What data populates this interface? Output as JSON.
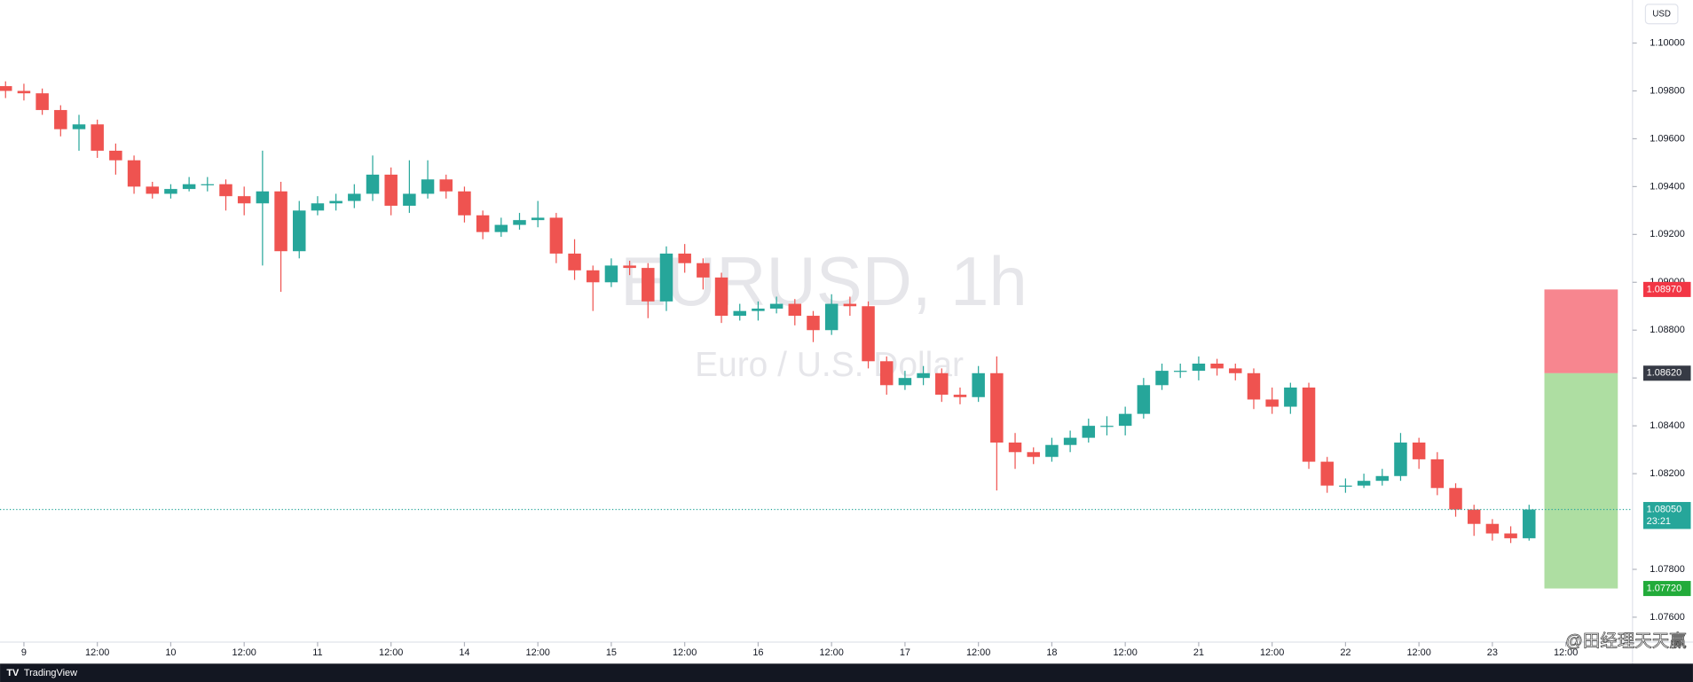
{
  "chart_data": {
    "type": "candlestick",
    "title": "EURUSD, 1h",
    "subtitle": "Euro / U.S. Dollar",
    "currency": "USD",
    "brand": "TradingView",
    "overlay_text": "@田经理天天赢",
    "up_color": "#26a69a",
    "down_color": "#ef5350",
    "grid": false,
    "xlim": [
      -3.9,
      262.9
    ],
    "ylim": [
      1.07496,
      1.1018
    ],
    "xticks": [
      {
        "value": 0,
        "label": "9"
      },
      {
        "value": 12,
        "label": "12:00"
      },
      {
        "value": 24,
        "label": "10"
      },
      {
        "value": 36,
        "label": "12:00"
      },
      {
        "value": 48,
        "label": "11"
      },
      {
        "value": 60,
        "label": "12:00"
      },
      {
        "value": 72,
        "label": "14"
      },
      {
        "value": 84,
        "label": "12:00"
      },
      {
        "value": 96,
        "label": "15"
      },
      {
        "value": 108,
        "label": "12:00"
      },
      {
        "value": 120,
        "label": "16"
      },
      {
        "value": 132,
        "label": "12:00"
      },
      {
        "value": 144,
        "label": "17"
      },
      {
        "value": 156,
        "label": "12:00"
      },
      {
        "value": 168,
        "label": "18"
      },
      {
        "value": 180,
        "label": "12:00"
      },
      {
        "value": 192,
        "label": "21"
      },
      {
        "value": 204,
        "label": "12:00"
      },
      {
        "value": 216,
        "label": "22"
      },
      {
        "value": 228,
        "label": "12:00"
      },
      {
        "value": 240,
        "label": "23"
      },
      {
        "value": 252,
        "label": "12:00"
      }
    ],
    "yticks": [
      {
        "value": 1.1,
        "label": "1.10000"
      },
      {
        "value": 1.098,
        "label": "1.09800"
      },
      {
        "value": 1.096,
        "label": "1.09600"
      },
      {
        "value": 1.094,
        "label": "1.09400"
      },
      {
        "value": 1.092,
        "label": "1.09200"
      },
      {
        "value": 1.09,
        "label": "1.09000"
      },
      {
        "value": 1.088,
        "label": "1.08800"
      },
      {
        "value": 1.086,
        "label": "1.08600"
      },
      {
        "value": 1.084,
        "label": "1.08400"
      },
      {
        "value": 1.082,
        "label": "1.08200"
      },
      {
        "value": 1.078,
        "label": "1.07800"
      },
      {
        "value": 1.076,
        "label": "1.07600"
      }
    ],
    "x": [
      -3,
      0,
      3,
      6,
      9,
      12,
      15,
      18,
      21,
      24,
      27,
      30,
      33,
      36,
      39,
      42,
      45,
      48,
      51,
      54,
      57,
      60,
      63,
      66,
      69,
      72,
      75,
      78,
      81,
      84,
      87,
      90,
      93,
      96,
      99,
      102,
      105,
      108,
      111,
      114,
      117,
      120,
      123,
      126,
      129,
      132,
      135,
      138,
      141,
      144,
      147,
      150,
      153,
      156,
      159,
      162,
      165,
      168,
      171,
      174,
      177,
      180,
      183,
      186,
      189,
      192,
      195,
      198,
      201,
      204,
      207,
      210,
      213,
      216,
      219,
      222,
      225,
      228,
      231,
      234,
      237,
      240,
      243,
      246
    ],
    "open": [
      1.0982,
      1.098,
      1.0979,
      1.0972,
      1.0964,
      1.0966,
      1.0955,
      1.0951,
      1.094,
      1.0937,
      1.0939,
      1.0941,
      1.0941,
      1.0936,
      1.0933,
      1.0938,
      1.0913,
      1.093,
      1.0933,
      1.0934,
      1.0937,
      1.0945,
      1.0932,
      1.0937,
      1.0943,
      1.0938,
      1.0928,
      1.0921,
      1.0924,
      1.0926,
      1.0927,
      1.0912,
      1.0905,
      1.09,
      1.0907,
      1.0906,
      1.0892,
      1.0912,
      1.0908,
      1.0902,
      1.0886,
      1.0888,
      1.0889,
      1.0891,
      1.0886,
      1.088,
      1.0891,
      1.089,
      1.0867,
      1.0857,
      1.086,
      1.0862,
      1.0853,
      1.0852,
      1.0862,
      1.0833,
      1.0829,
      1.0827,
      1.0832,
      1.0835,
      1.084,
      1.084,
      1.0845,
      1.0857,
      1.0863,
      1.0863,
      1.0866,
      1.0864,
      1.0862,
      1.0851,
      1.0848,
      1.0856,
      1.0825,
      1.0815,
      1.0815,
      1.0817,
      1.0819,
      1.0833,
      1.0826,
      1.0814,
      1.0805,
      1.0799,
      1.0795,
      1.0793
    ],
    "high": [
      1.0984,
      1.0983,
      1.0981,
      1.0974,
      1.097,
      1.0968,
      1.0958,
      1.0953,
      1.0942,
      1.0941,
      1.0944,
      1.0944,
      1.0943,
      1.094,
      1.0955,
      1.0942,
      1.0934,
      1.0936,
      1.0937,
      1.0941,
      1.0953,
      1.0948,
      1.0951,
      1.0951,
      1.0945,
      1.094,
      1.093,
      1.0927,
      1.0929,
      1.0934,
      1.0929,
      1.0918,
      1.0907,
      1.091,
      1.0909,
      1.0908,
      1.0915,
      1.0916,
      1.091,
      1.0904,
      1.0891,
      1.0892,
      1.0894,
      1.0893,
      1.0888,
      1.0895,
      1.0894,
      1.0892,
      1.0869,
      1.0863,
      1.0865,
      1.0864,
      1.0856,
      1.0865,
      1.0869,
      1.0837,
      1.0831,
      1.0835,
      1.0838,
      1.0843,
      1.0844,
      1.0848,
      1.086,
      1.0866,
      1.0866,
      1.0869,
      1.0868,
      1.0866,
      1.0864,
      1.0856,
      1.0858,
      1.0858,
      1.0827,
      1.0818,
      1.082,
      1.0822,
      1.0837,
      1.0835,
      1.0829,
      1.0816,
      1.0807,
      1.0801,
      1.0798,
      1.0807
    ],
    "low": [
      1.0977,
      1.0976,
      1.097,
      1.0961,
      1.0955,
      1.0952,
      1.0945,
      1.0937,
      1.0935,
      1.0935,
      1.0938,
      1.0938,
      1.093,
      1.0928,
      1.0907,
      1.0896,
      1.091,
      1.0928,
      1.093,
      1.0931,
      1.0934,
      1.0928,
      1.0929,
      1.0935,
      1.0935,
      1.0925,
      1.0918,
      1.0919,
      1.0922,
      1.0923,
      1.0908,
      1.0901,
      1.0888,
      1.0898,
      1.0903,
      1.0885,
      1.0888,
      1.0904,
      1.0897,
      1.0883,
      1.0884,
      1.0884,
      1.0887,
      1.0882,
      1.0875,
      1.0878,
      1.0886,
      1.0864,
      1.0853,
      1.0855,
      1.0857,
      1.085,
      1.0849,
      1.085,
      1.0813,
      1.0822,
      1.0824,
      1.0825,
      1.0829,
      1.0833,
      1.0836,
      1.0836,
      1.0843,
      1.0855,
      1.086,
      1.0859,
      1.0861,
      1.0859,
      1.0847,
      1.0845,
      1.0845,
      1.0822,
      1.0812,
      1.0812,
      1.0814,
      1.0815,
      1.0817,
      1.0822,
      1.0811,
      1.0802,
      1.0794,
      1.0792,
      1.0791,
      1.0792
    ],
    "close": [
      1.098,
      1.0979,
      1.0972,
      1.0964,
      1.0966,
      1.0955,
      1.0951,
      1.094,
      1.0937,
      1.0939,
      1.0941,
      1.0941,
      1.0936,
      1.0933,
      1.0938,
      1.0913,
      1.093,
      1.0933,
      1.0934,
      1.0937,
      1.0945,
      1.0932,
      1.0937,
      1.0943,
      1.0938,
      1.0928,
      1.0921,
      1.0924,
      1.0926,
      1.0927,
      1.0912,
      1.0905,
      1.09,
      1.0907,
      1.0906,
      1.0892,
      1.0912,
      1.0908,
      1.0902,
      1.0886,
      1.0888,
      1.0889,
      1.0891,
      1.0886,
      1.088,
      1.0891,
      1.089,
      1.0867,
      1.0857,
      1.086,
      1.0862,
      1.0853,
      1.0852,
      1.0862,
      1.0833,
      1.0829,
      1.0827,
      1.0832,
      1.0835,
      1.084,
      1.084,
      1.0845,
      1.0857,
      1.0863,
      1.0863,
      1.0866,
      1.0864,
      1.0862,
      1.0851,
      1.0848,
      1.0856,
      1.0825,
      1.0815,
      1.0815,
      1.0817,
      1.0819,
      1.0833,
      1.0826,
      1.0814,
      1.0805,
      1.0799,
      1.0795,
      1.0793,
      1.0805
    ],
    "last_price": {
      "value": 1.0805,
      "label": "1.08050",
      "countdown": "23:21"
    },
    "position": {
      "start": 248.5,
      "end": 260.5,
      "stop": {
        "value": 1.0897,
        "label": "1.08970"
      },
      "entry": {
        "value": 1.0862,
        "label": "1.08620"
      },
      "target": {
        "value": 1.0772,
        "label": "1.07720"
      }
    }
  }
}
